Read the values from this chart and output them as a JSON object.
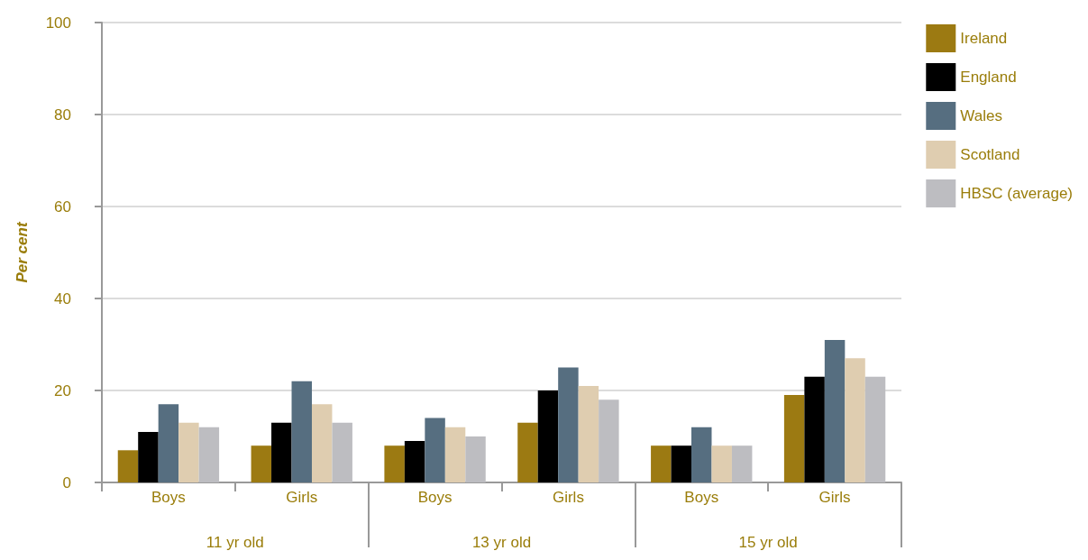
{
  "chart_data": {
    "type": "bar",
    "ylabel": "Per cent",
    "categories": [
      "Boys",
      "Girls",
      "Boys",
      "Girls",
      "Boys",
      "Girls"
    ],
    "annotations": [
      "11 yr old",
      "13 yr old",
      "15 yr old"
    ],
    "series": [
      {
        "name": "Ireland",
        "color": "#9c7a12",
        "values": [
          7,
          8,
          8,
          13,
          8,
          19
        ]
      },
      {
        "name": "England",
        "color": "#000000",
        "values": [
          11,
          13,
          9,
          20,
          8,
          23
        ]
      },
      {
        "name": "Wales",
        "color": "#566e80",
        "values": [
          17,
          22,
          14,
          25,
          12,
          31
        ]
      },
      {
        "name": "Scotland",
        "color": "#dfcdb0",
        "values": [
          13,
          17,
          12,
          21,
          8,
          27
        ]
      },
      {
        "name": "HBSC (average)",
        "color": "#bdbdc1",
        "values": [
          12,
          13,
          10,
          18,
          8,
          23
        ]
      }
    ],
    "ylim": [
      0,
      100
    ],
    "yticks": [
      0,
      20,
      40,
      60,
      80,
      100
    ],
    "grid": "y",
    "legend": "right"
  }
}
